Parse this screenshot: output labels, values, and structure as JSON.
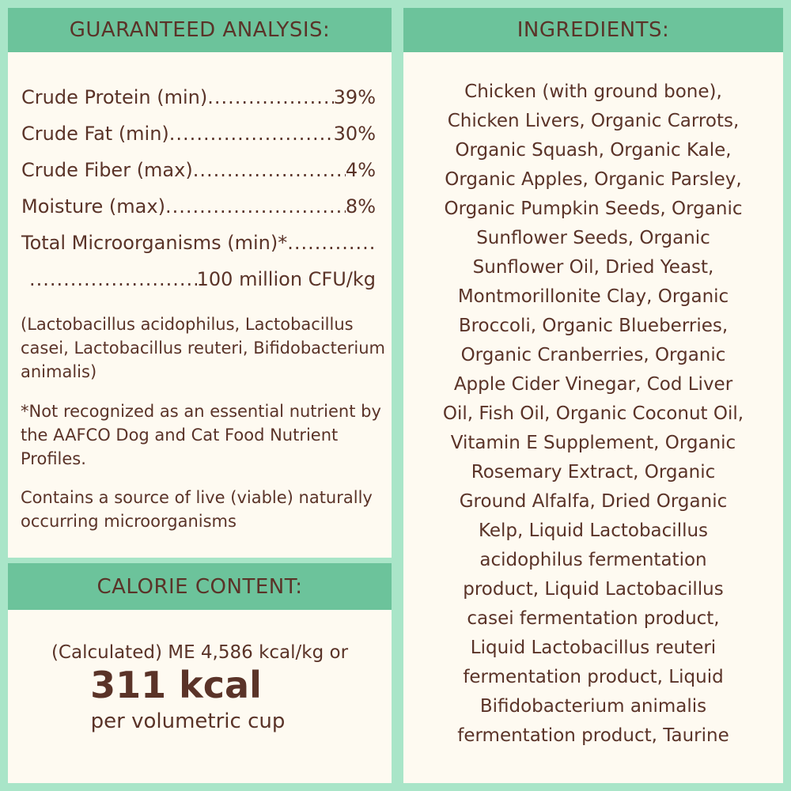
{
  "guaranteed_analysis": {
    "title": "GUARANTEED ANALYSIS:",
    "rows": [
      {
        "label": "Crude Protein (min)",
        "value": "39%"
      },
      {
        "label": "Crude Fat (min)",
        "value": "30%"
      },
      {
        "label": "Crude Fiber (max)",
        "value": "4%"
      },
      {
        "label": "Moisture (max)",
        "value": "8%"
      },
      {
        "label": "Total Microorganisms (min)*",
        "value": ""
      },
      {
        "label": "",
        "value": "100 million CFU/kg"
      }
    ],
    "strains": "(Lactobacillus acidophilus, Lactobacillus casei, Lactobacillus reuteri, Bifidobacterium animalis)",
    "footnote": "*Not recognized as an essential nutrient by the AAFCO Dog and Cat Food Nutrient Profiles.",
    "live_note": "Contains a source of live (viable) naturally occurring microorganisms"
  },
  "calorie_content": {
    "title": "CALORIE CONTENT:",
    "line1": "(Calculated) ME 4,586 kcal/kg or",
    "line2": "311 kcal",
    "line3": "per volumetric cup"
  },
  "ingredients": {
    "title": "INGREDIENTS:",
    "lines": [
      "Chicken (with ground bone),",
      "Chicken Livers, Organic Carrots,",
      "Organic Squash, Organic Kale,",
      "Organic Apples, Organic Parsley,",
      "Organic Pumpkin Seeds, Organic",
      "Sunflower Seeds, Organic",
      "Sunflower Oil, Dried Yeast,",
      "Montmorillonite Clay, Organic",
      "Broccoli, Organic Blueberries,",
      "Organic Cranberries, Organic",
      "Apple Cider Vinegar, Cod Liver",
      "Oil, Fish Oil, Organic Coconut Oil,",
      "Vitamin E Supplement, Organic",
      "Rosemary Extract, Organic",
      "Ground Alfalfa, Dried Organic",
      "Kelp, Liquid Lactobacillus",
      "acidophilus fermentation",
      "product, Liquid Lactobacillus",
      "casei fermentation product,",
      "Liquid Lactobacillus reuteri",
      "fermentation product, Liquid",
      "Bifidobacterium animalis",
      "fermentation product, Taurine"
    ]
  },
  "colors": {
    "background": "#a9e5c8",
    "header": "#6cc39b",
    "panel": "#fefaf1",
    "text": "#5a3328"
  }
}
